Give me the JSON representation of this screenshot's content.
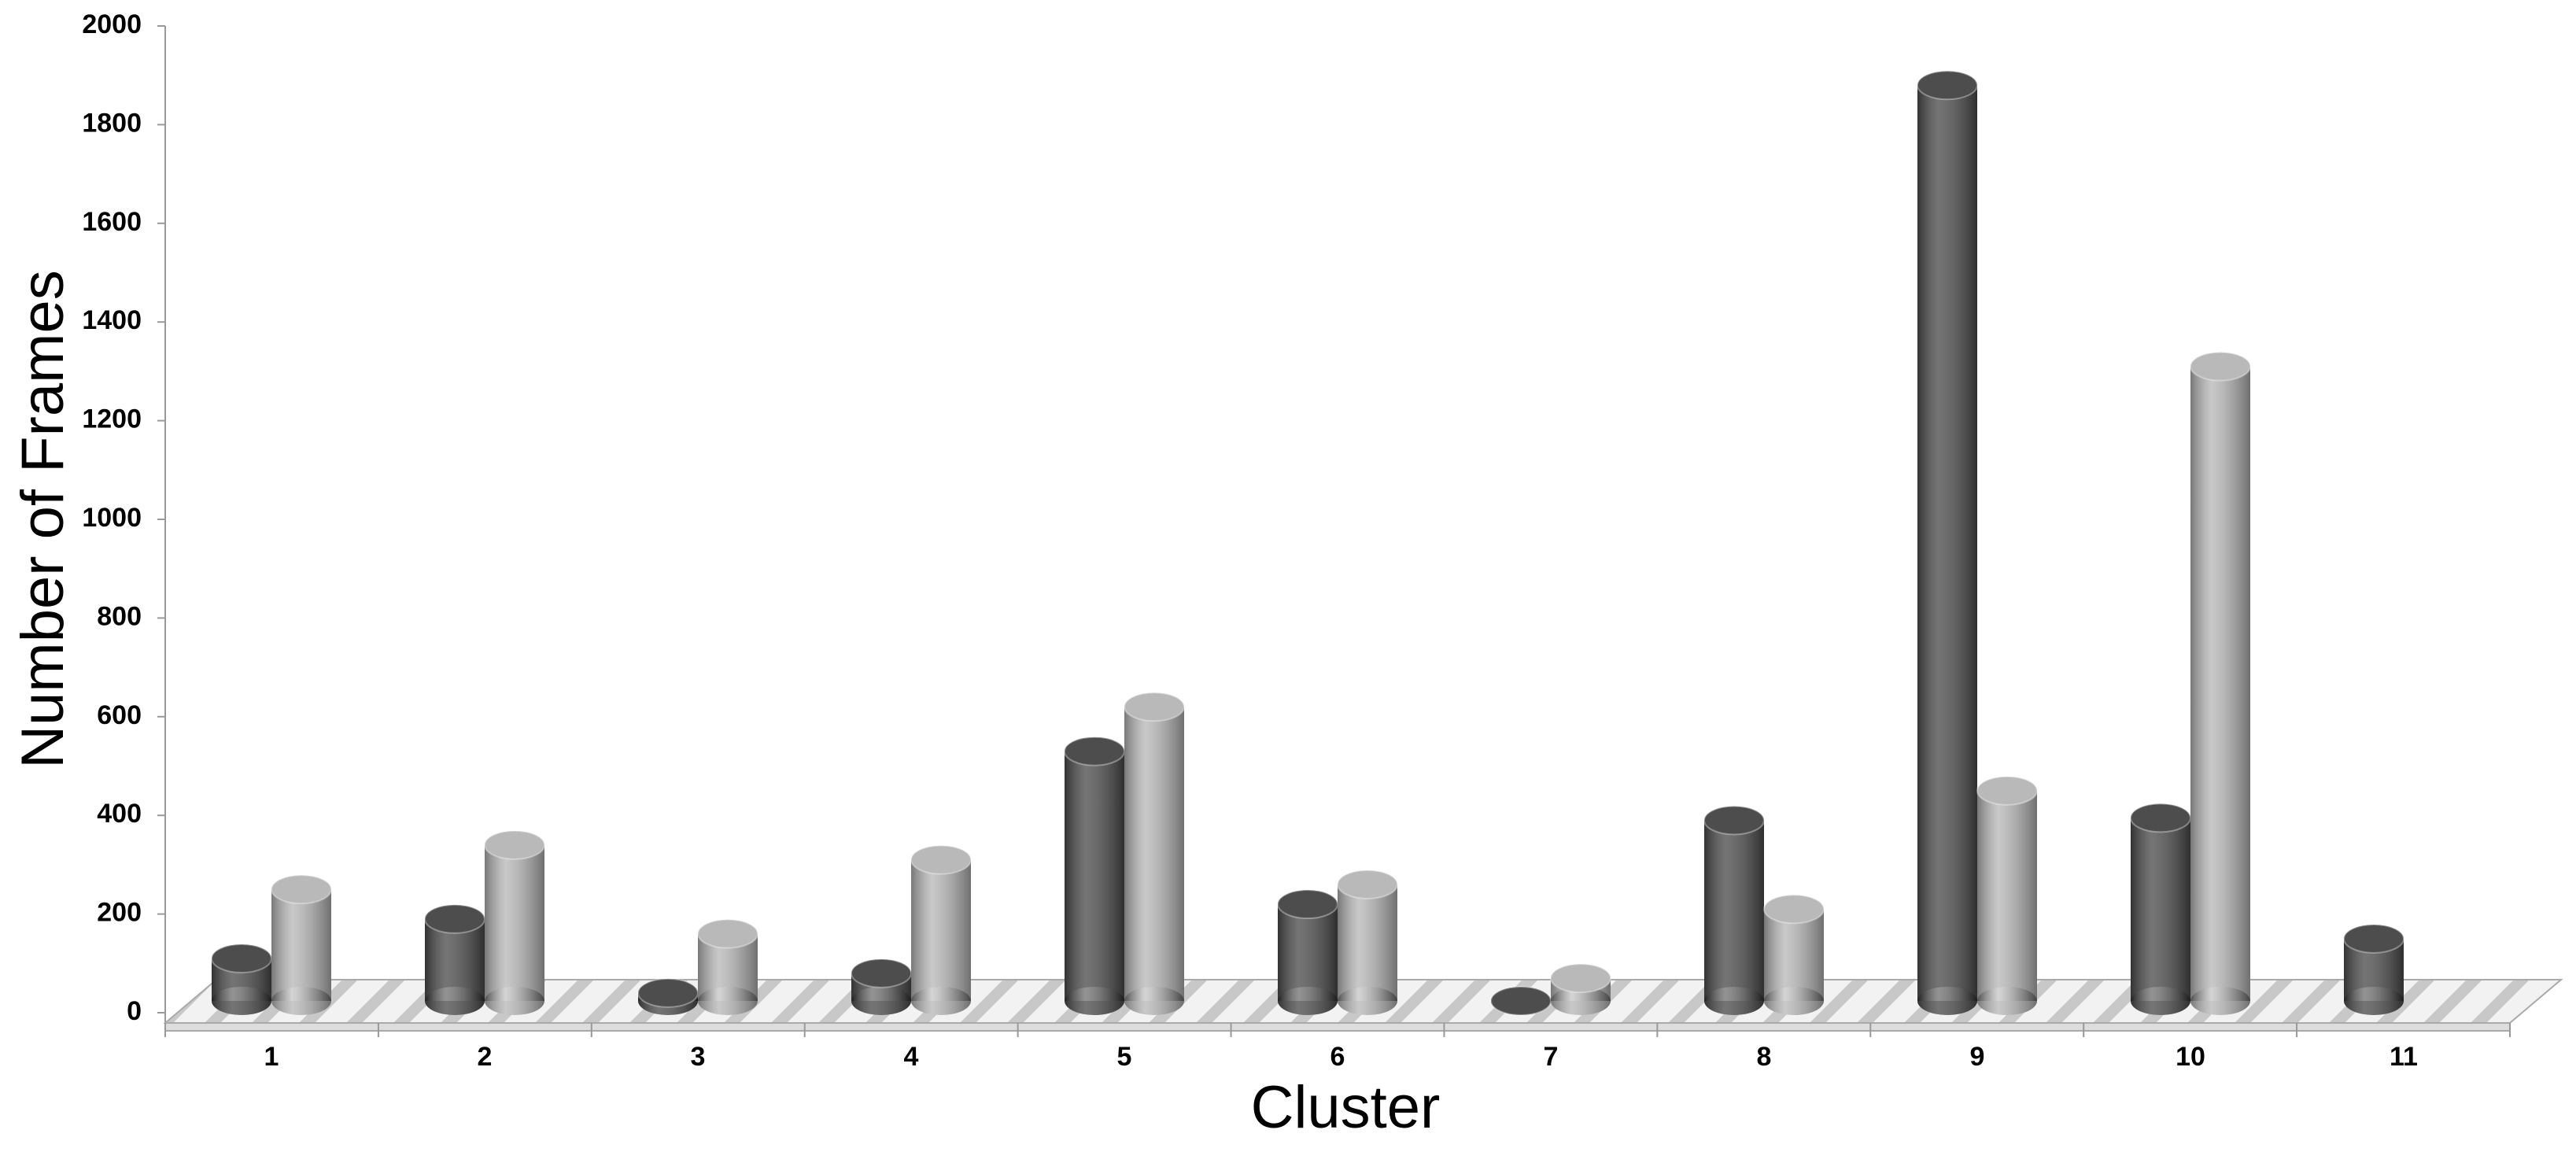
{
  "chart_data": {
    "type": "bar",
    "x_label": "Cluster",
    "y_label": "Number of Frames",
    "categories": [
      "1",
      "2",
      "3",
      "4",
      "5",
      "6",
      "7",
      "8",
      "9",
      "10",
      "11"
    ],
    "series": [
      {
        "color": "#4d4d4d",
        "values": [
          110,
          190,
          40,
          80,
          530,
          220,
          0,
          390,
          1880,
          395,
          150
        ]
      },
      {
        "color": "#b9b9b9",
        "values": [
          250,
          340,
          160,
          310,
          620,
          260,
          70,
          210,
          450,
          1310,
          null
        ]
      }
    ],
    "ylim": [
      0,
      2000
    ],
    "yticks": [
      0,
      200,
      400,
      600,
      800,
      1000,
      1200,
      1400,
      1600,
      1800,
      2000
    ]
  }
}
